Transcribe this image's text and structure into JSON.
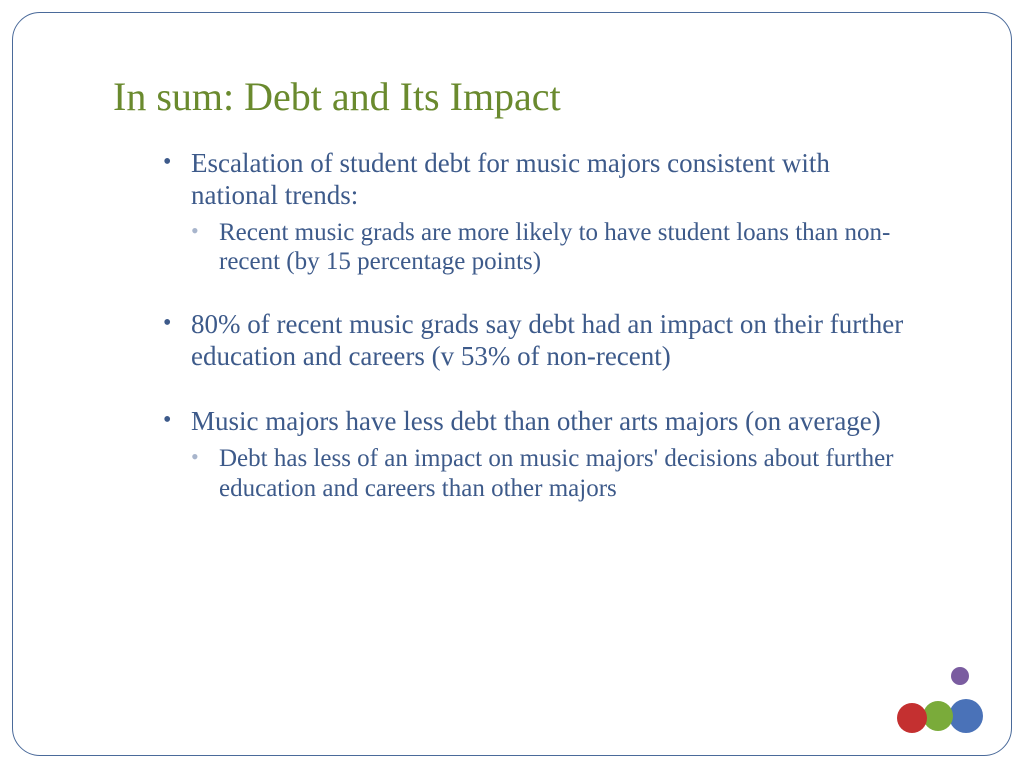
{
  "title": "In sum:  Debt and Its Impact",
  "colors": {
    "title": "#6a8a2e",
    "body_text": "#3d5a8a",
    "sub_bullet_marker": "#a8b5cc",
    "frame_border": "#4a6a9a",
    "background": "#ffffff"
  },
  "typography": {
    "title_fontsize": 40,
    "body_fontsize": 27,
    "sub_fontsize": 25,
    "font_family": "Georgia serif"
  },
  "bullets": [
    {
      "text": "Escalation of student debt for music majors consistent with national trends:",
      "sub": [
        "Recent music grads are more likely to have student loans than non-recent (by 15 percentage points)"
      ]
    },
    {
      "text": "80% of recent music grads say debt had an impact on their further education and careers (v 53% of non-recent)",
      "sub": []
    },
    {
      "text": "Music majors have less debt than other arts majors (on average)",
      "sub": [
        "Debt has less of an impact on music majors' decisions about further education and careers than other majors"
      ]
    }
  ],
  "decoration": {
    "circles": [
      {
        "name": "purple",
        "color": "#7a5ca0",
        "size": 18
      },
      {
        "name": "blue",
        "color": "#4a72b8",
        "size": 34
      },
      {
        "name": "green",
        "color": "#7aab3a",
        "size": 30
      },
      {
        "name": "red",
        "color": "#c43030",
        "size": 30
      }
    ]
  }
}
